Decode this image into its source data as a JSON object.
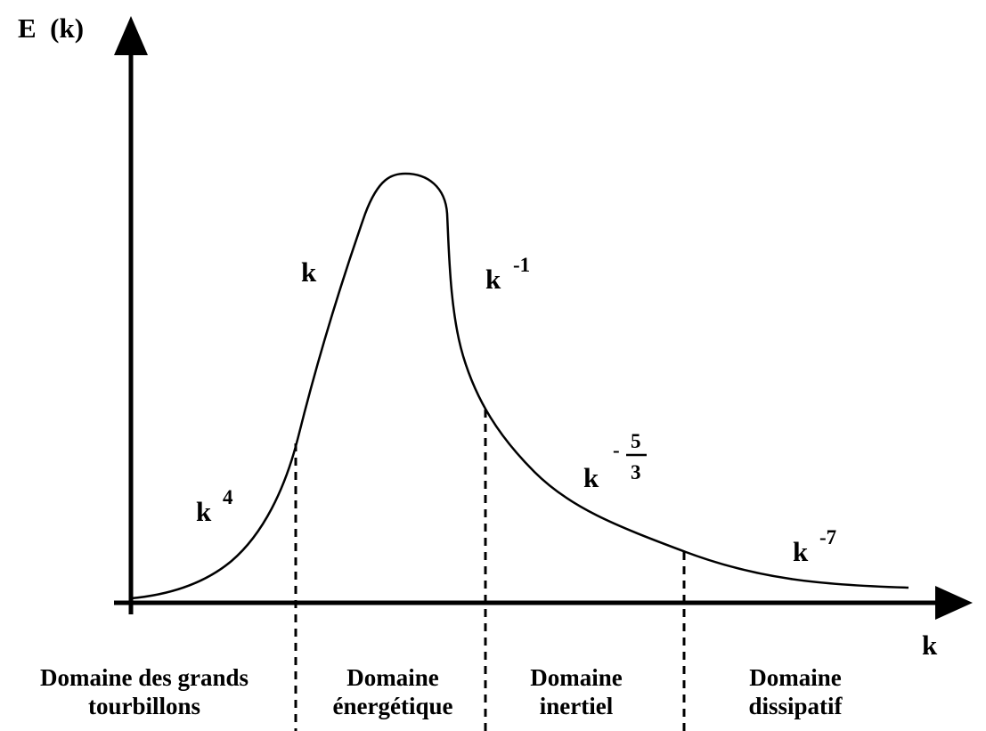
{
  "axes": {
    "y_label": "E  (k)",
    "x_label": "k"
  },
  "slopes": [
    {
      "base": "k",
      "exponent": "4"
    },
    {
      "base": "k",
      "exponent": ""
    },
    {
      "base": "k",
      "exponent": "-1"
    },
    {
      "base": "k",
      "sign": "-",
      "numerator": "5",
      "denominator": "3"
    },
    {
      "base": "k",
      "exponent": "-7"
    }
  ],
  "domains": [
    {
      "line1": "Domaine des grands",
      "line2": "tourbillons"
    },
    {
      "line1": "Domaine",
      "line2": "énergétique"
    },
    {
      "line1": "Domaine",
      "line2": "inertiel"
    },
    {
      "line1": "Domaine",
      "line2": "dissipatif"
    }
  ]
}
